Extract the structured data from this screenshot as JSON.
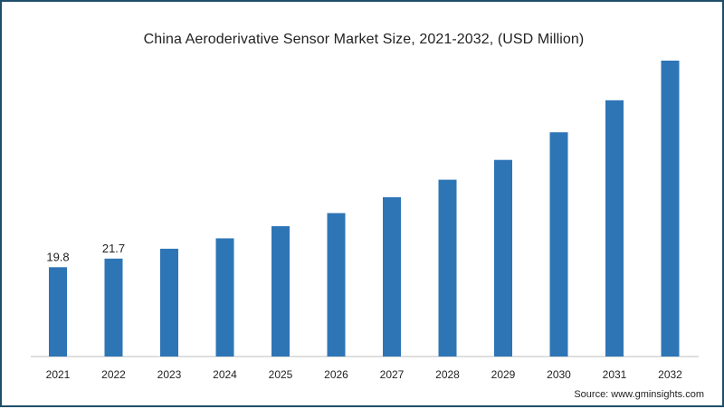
{
  "chart_data": {
    "type": "bar",
    "title": "China Aeroderivative Sensor Market Size, 2021-2032, (USD Million)",
    "categories": [
      "2021",
      "2022",
      "2023",
      "2024",
      "2025",
      "2026",
      "2027",
      "2028",
      "2029",
      "2030",
      "2031",
      "2032"
    ],
    "values": [
      19.8,
      21.7,
      23.9,
      26.2,
      28.9,
      31.8,
      35.3,
      39.2,
      43.6,
      49.7,
      56.8,
      65.6
    ],
    "data_labels": [
      "19.8",
      "21.7",
      "",
      "",
      "",
      "",
      "",
      "",
      "",
      "",
      "",
      ""
    ],
    "ylim": [
      0,
      67
    ],
    "bar_color": "#2e75b6",
    "grid": false,
    "xlabel": "",
    "ylabel": ""
  },
  "source": "Source: www.gminsights.com",
  "colors": {
    "border": "#1f4e6b",
    "axis": "#bfbfbf"
  }
}
